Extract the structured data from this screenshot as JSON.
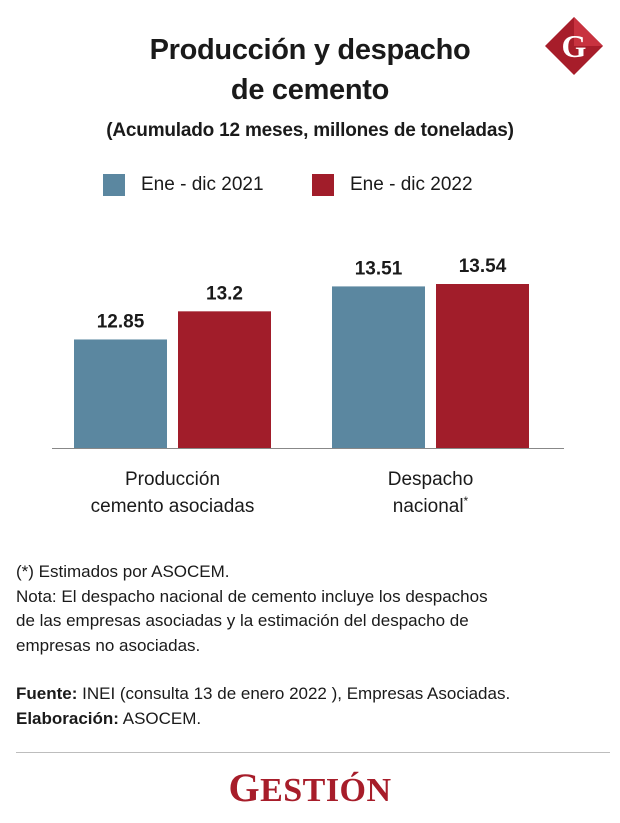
{
  "header": {
    "title_line1": "Producción y despacho",
    "title_line2": "de cemento",
    "subtitle": "(Acumulado 12 meses, millones de toneladas)",
    "logo_letter": "G"
  },
  "colors": {
    "series_2021": "#5b87a0",
    "series_2022": "#a11d2a",
    "brand": "#a71d2a"
  },
  "chart_data": {
    "type": "bar",
    "categories": [
      [
        "Producción",
        "cemento asociadas"
      ],
      [
        "Despacho",
        "nacional*"
      ]
    ],
    "series": [
      {
        "name": "Ene - dic 2021",
        "values": [
          12.85,
          13.51
        ],
        "labels": [
          "12.85",
          "13.51"
        ]
      },
      {
        "name": "Ene - dic 2022",
        "values": [
          13.2,
          13.54
        ],
        "labels": [
          "13.2",
          "13.54"
        ]
      }
    ],
    "title": "Producción y despacho de cemento",
    "subtitle": "(Acumulado 12 meses, millones de toneladas)",
    "grid": false,
    "legend": "top"
  },
  "notes": {
    "line1": "(*) Estimados por ASOCEM.",
    "line2": "Nota: El despacho nacional de cemento incluye los despachos",
    "line3": "de las empresas asociadas y la estimación del despacho de",
    "line4": "empresas no asociadas."
  },
  "sources": {
    "fuente_label": "Fuente:",
    "fuente_text": " INEI (consulta 13 de enero 2022 ), Empresas Asociadas.",
    "elaboracion_label": "Elaboración:",
    "elaboracion_text": " ASOCEM."
  },
  "brand": {
    "first": "G",
    "rest": "ESTIÓN"
  }
}
